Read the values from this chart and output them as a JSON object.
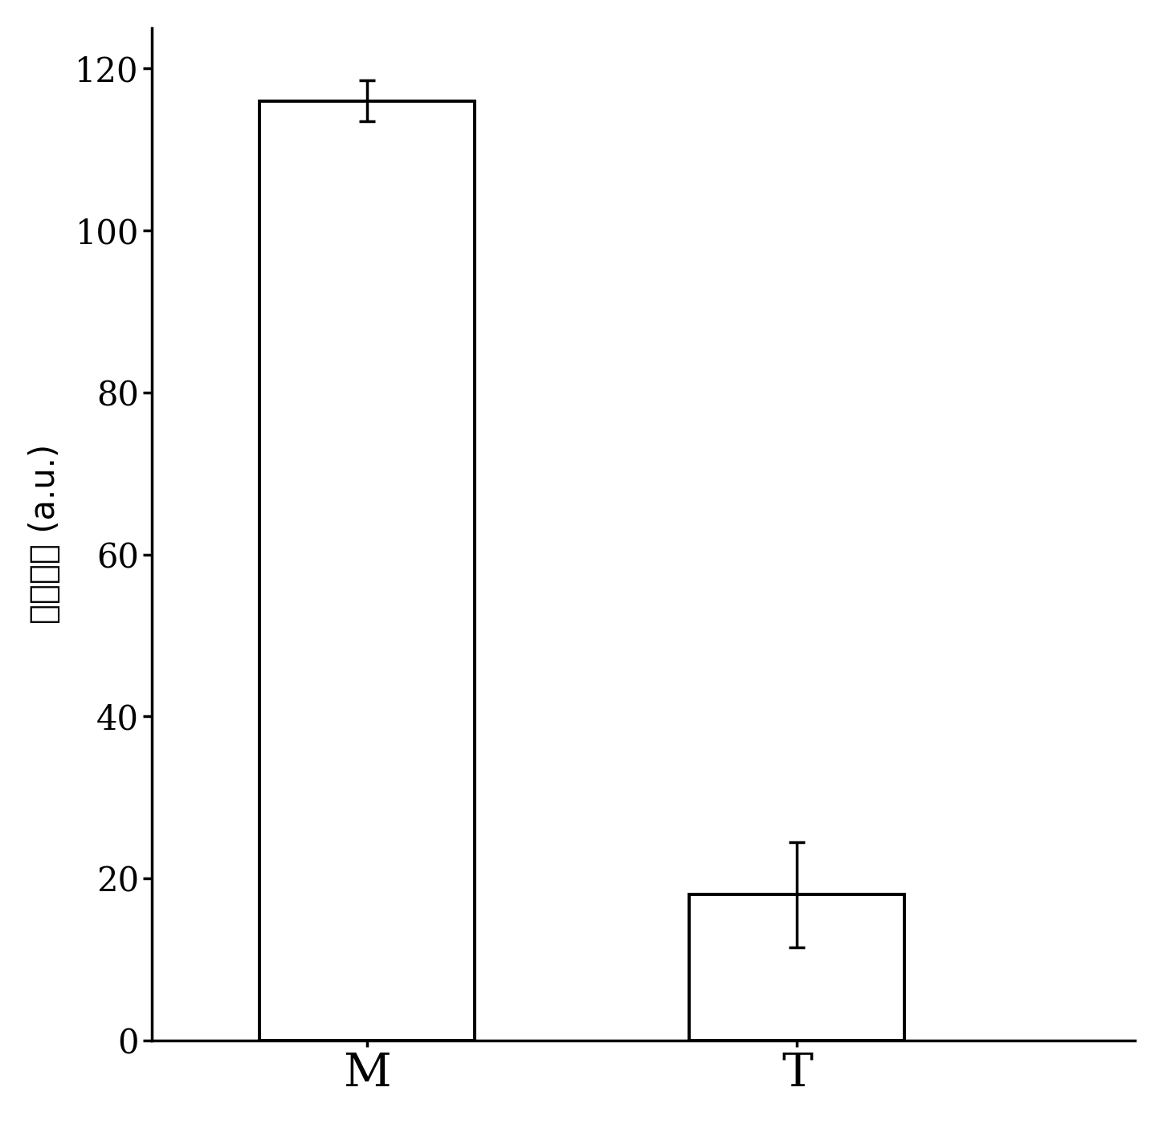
{
  "categories": [
    "M",
    "T"
  ],
  "values": [
    116.0,
    18.0
  ],
  "errors": [
    2.5,
    6.5
  ],
  "bar_color": "#ffffff",
  "bar_edgecolor": "#000000",
  "bar_linewidth": 2.8,
  "ylabel": "荧光强度 (a.u.)",
  "ylim": [
    0,
    125
  ],
  "yticks": [
    0,
    20,
    40,
    60,
    80,
    100,
    120
  ],
  "xlabel_fontsize": 42,
  "ylabel_fontsize": 30,
  "tick_fontsize": 30,
  "bar_width": 0.35,
  "bar_positions": [
    0.35,
    1.05
  ],
  "capsize": 7,
  "error_linewidth": 2.5,
  "background_color": "#ffffff",
  "spine_linewidth": 2.5
}
